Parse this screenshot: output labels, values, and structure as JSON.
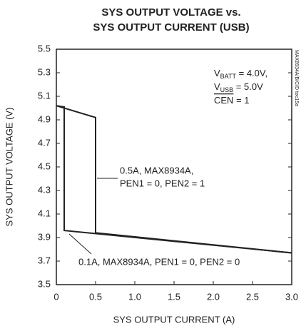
{
  "chart_data": {
    "type": "line",
    "title": [
      "SYS OUTPUT VOLTAGE vs.",
      "SYS OUTPUT CURRENT (USB)"
    ],
    "x_label": "SYS OUTPUT CURRENT (A)",
    "y_label": "SYS OUTPUT VOLTAGE (V)",
    "watermark": "MAX8934A/B/C/D toc15a",
    "xlim": [
      0,
      3.0
    ],
    "ylim": [
      3.5,
      5.5
    ],
    "xticks": [
      0,
      0.5,
      {
        "value": 1.0,
        "label": "1.0"
      },
      1.5,
      {
        "value": 2.0,
        "label": "2.0"
      },
      2.5,
      {
        "value": 3.0,
        "label": "3.0"
      }
    ],
    "yticks": [
      3.5,
      3.7,
      3.9,
      4.1,
      4.3,
      4.5,
      4.7,
      4.9,
      5.1,
      5.3,
      5.5
    ],
    "grid": false,
    "series": [
      {
        "color": "#222222",
        "x": [
          0,
          0.5,
          0.5,
          3.0
        ],
        "values": [
          5.02,
          4.92,
          3.94,
          3.77
        ]
      },
      {
        "color": "#222222",
        "x": [
          0,
          0.1,
          0.1,
          3.0
        ],
        "values": [
          5.02,
          5.01,
          3.96,
          3.77
        ]
      }
    ],
    "annotations": [
      "0.5A, MAX8934A,",
      "PEN1 = 0, PEN2 = 1",
      "0.1A, MAX8934A, PEN1 = 0, PEN2 = 0"
    ],
    "conditions": [
      {
        "main": "V",
        "sub": "BATT",
        "rest": " = 4.0V,"
      },
      {
        "main": "V",
        "sub": "USB",
        "rest": " = 5.0V"
      },
      {
        "overline": "CEN",
        "rest": " = 1"
      }
    ]
  }
}
